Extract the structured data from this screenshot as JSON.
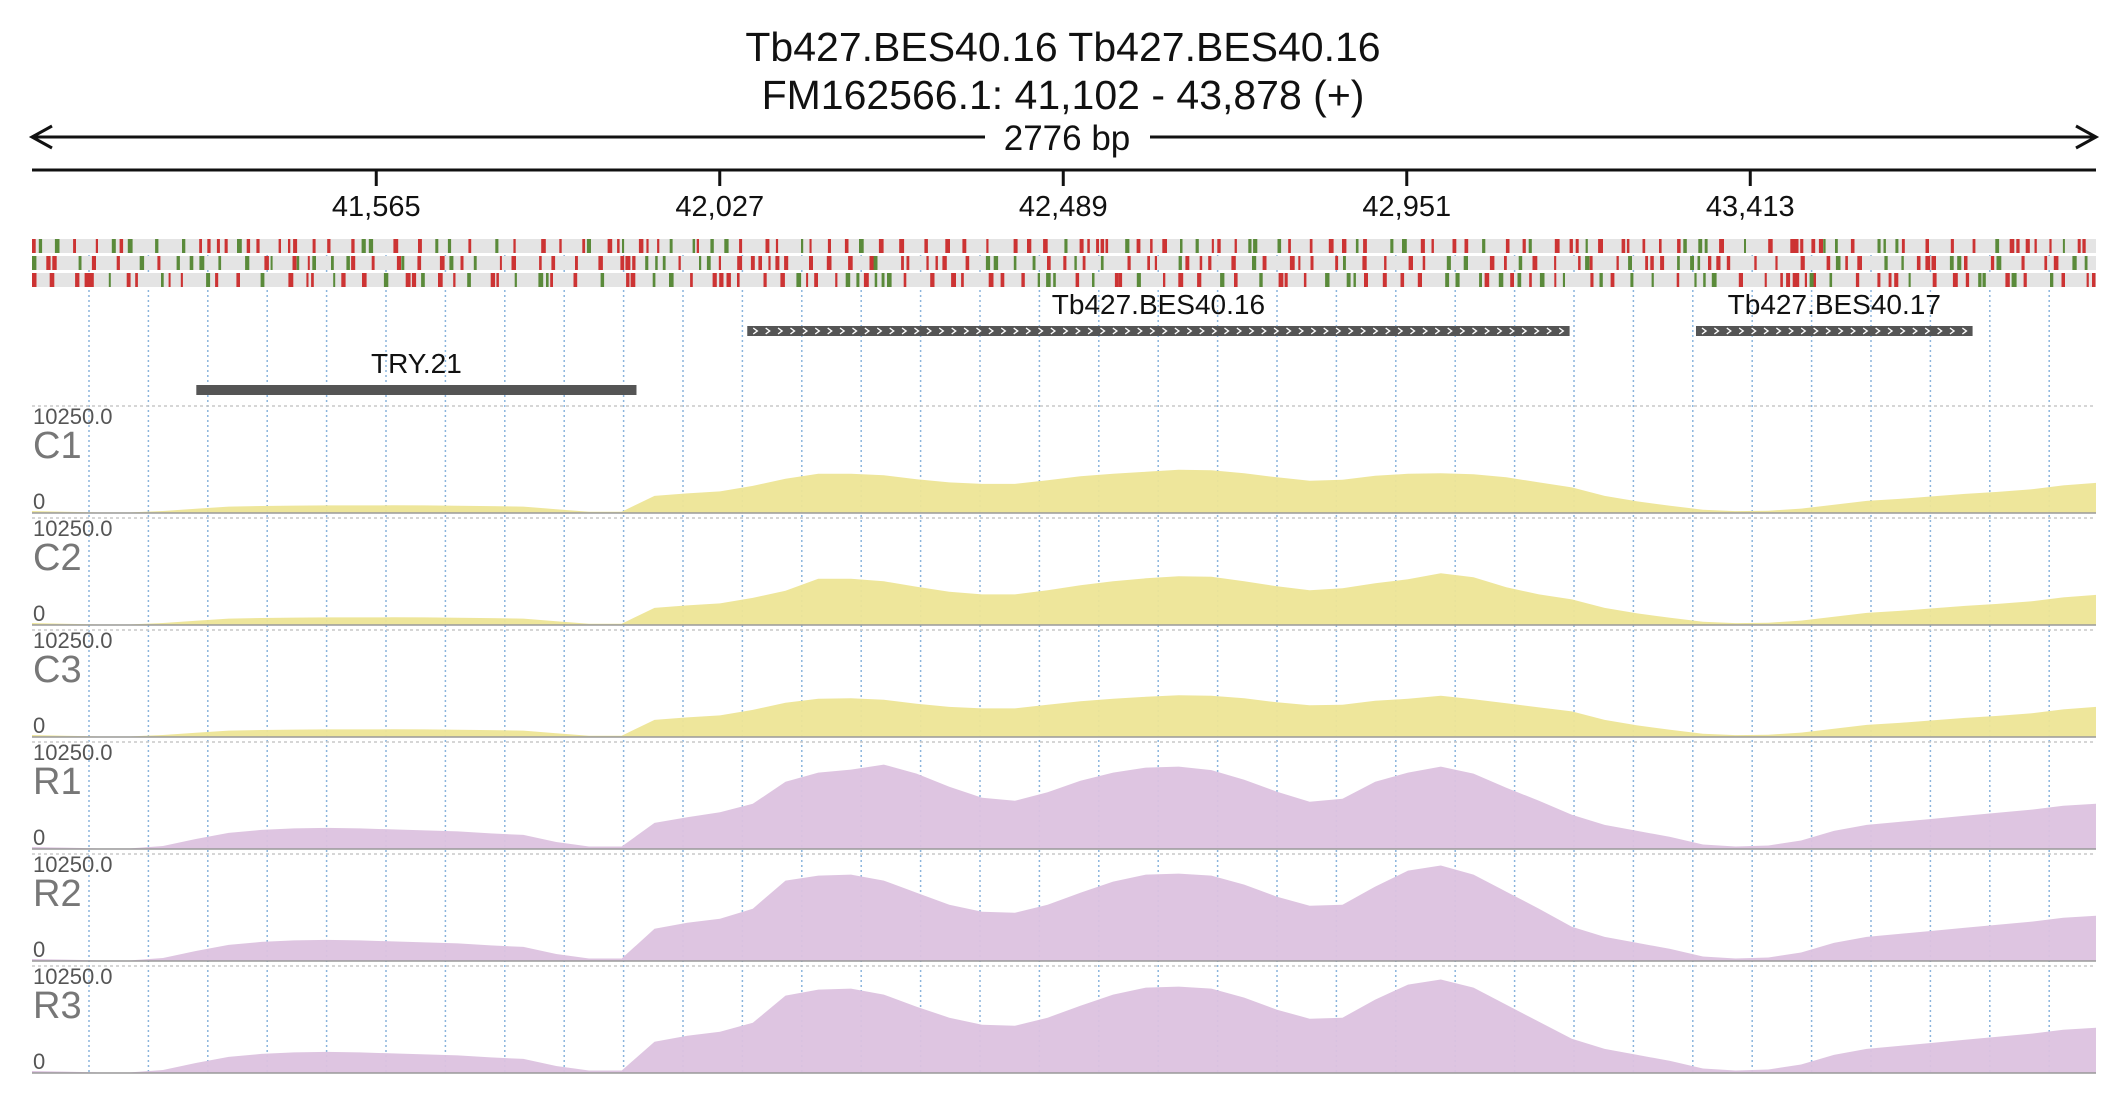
{
  "header": {
    "title_line1": "Tb427.BES40.16  Tb427.BES40.16",
    "title_line2": "FM162566.1: 41,102 - 43,878 (+)",
    "span_label": "2776 bp"
  },
  "chart_data": {
    "type": "area",
    "region": {
      "chrom": "FM162566.1",
      "start": 41102,
      "end": 43878,
      "strand": "+"
    },
    "axis": {
      "ticks": [
        41565,
        42027,
        42489,
        42951,
        43413
      ],
      "tick_labels": [
        "41,565",
        "42,027",
        "42,489",
        "42,951",
        "43,413"
      ]
    },
    "sequence_frames": {
      "rows": 3,
      "stop_color": "#cc3333",
      "start_color": "#5a8a3a",
      "background": "#e4e4e4"
    },
    "genes": [
      {
        "name": "TRY.21",
        "start": 41323,
        "end": 41915,
        "strand": ".",
        "row": 2
      },
      {
        "name": "Tb427.BES40.16",
        "start": 42064,
        "end": 43170,
        "strand": "+",
        "row": 1
      },
      {
        "name": "Tb427.BES40.17",
        "start": 43340,
        "end": 43712,
        "strand": "+",
        "row": 1
      }
    ],
    "tracks": [
      {
        "name": "C1",
        "max": "10250.0",
        "min": "0",
        "color": "#ede596",
        "values": [
          200,
          130,
          60,
          60,
          200,
          430,
          640,
          700,
          740,
          760,
          760,
          770,
          760,
          730,
          690,
          640,
          380,
          130,
          130,
          1700,
          1950,
          2150,
          2700,
          3400,
          3900,
          3900,
          3750,
          3350,
          3050,
          2900,
          2900,
          3250,
          3650,
          3900,
          4100,
          4300,
          4250,
          3950,
          3550,
          3200,
          3300,
          3700,
          3900,
          3950,
          3850,
          3550,
          3050,
          2550,
          1700,
          1150,
          730,
          330,
          190,
          230,
          440,
          820,
          1200,
          1400,
          1650,
          1900,
          2100,
          2350,
          2750,
          3000
        ]
      },
      {
        "name": "C2",
        "max": "10250.0",
        "min": "0",
        "color": "#ede596",
        "values": [
          200,
          130,
          60,
          60,
          200,
          430,
          640,
          700,
          740,
          760,
          760,
          770,
          760,
          730,
          690,
          640,
          380,
          130,
          130,
          1700,
          1950,
          2150,
          2700,
          3400,
          4600,
          4600,
          4350,
          3800,
          3300,
          3050,
          3050,
          3450,
          3950,
          4350,
          4650,
          4850,
          4800,
          4350,
          3850,
          3450,
          3650,
          4150,
          4550,
          5150,
          4750,
          3750,
          3050,
          2550,
          1700,
          1150,
          730,
          330,
          190,
          230,
          440,
          820,
          1200,
          1400,
          1650,
          1900,
          2100,
          2350,
          2750,
          3000
        ]
      },
      {
        "name": "C3",
        "max": "10250.0",
        "min": "0",
        "color": "#ede596",
        "values": [
          200,
          130,
          60,
          60,
          200,
          430,
          640,
          700,
          740,
          760,
          760,
          770,
          760,
          730,
          690,
          640,
          380,
          130,
          130,
          1700,
          1950,
          2150,
          2700,
          3400,
          3800,
          3850,
          3700,
          3300,
          3000,
          2850,
          2850,
          3200,
          3550,
          3800,
          4000,
          4150,
          4100,
          3850,
          3450,
          3150,
          3200,
          3600,
          3800,
          4100,
          3750,
          3350,
          2950,
          2550,
          1700,
          1150,
          730,
          330,
          190,
          230,
          440,
          820,
          1200,
          1400,
          1650,
          1900,
          2100,
          2350,
          2750,
          3000
        ]
      },
      {
        "name": "R1",
        "max": "10250.0",
        "min": "0",
        "color": "#dcc2df",
        "values": [
          200,
          140,
          60,
          60,
          300,
          1000,
          1600,
          1900,
          2050,
          2100,
          2050,
          1950,
          1850,
          1750,
          1550,
          1400,
          700,
          250,
          250,
          2600,
          3150,
          3650,
          4500,
          6700,
          7600,
          7900,
          8400,
          7500,
          6200,
          5100,
          4800,
          5650,
          6800,
          7600,
          8100,
          8200,
          7850,
          6900,
          5700,
          4700,
          5000,
          6700,
          7600,
          8200,
          7500,
          6100,
          4800,
          3400,
          2400,
          1800,
          1200,
          450,
          250,
          350,
          850,
          1800,
          2400,
          2700,
          3000,
          3300,
          3600,
          3900,
          4300,
          4500
        ]
      },
      {
        "name": "R2",
        "max": "10250.0",
        "min": "0",
        "color": "#dcc2df",
        "values": [
          200,
          140,
          60,
          60,
          300,
          1000,
          1600,
          1900,
          2050,
          2100,
          2050,
          1950,
          1850,
          1750,
          1550,
          1400,
          700,
          250,
          250,
          3200,
          3800,
          4200,
          5200,
          8000,
          8500,
          8600,
          8000,
          6800,
          5600,
          4900,
          4800,
          5600,
          6800,
          7900,
          8600,
          8700,
          8500,
          7600,
          6400,
          5500,
          5600,
          7400,
          9000,
          9500,
          8600,
          6900,
          5200,
          3400,
          2400,
          1800,
          1200,
          450,
          250,
          350,
          850,
          1800,
          2400,
          2700,
          3000,
          3300,
          3600,
          3900,
          4300,
          4500
        ]
      },
      {
        "name": "R3",
        "max": "10250.0",
        "min": "0",
        "color": "#dcc2df",
        "values": [
          200,
          140,
          60,
          60,
          300,
          1000,
          1600,
          1900,
          2050,
          2100,
          2050,
          1950,
          1850,
          1750,
          1550,
          1400,
          700,
          250,
          250,
          3100,
          3700,
          4100,
          5000,
          7700,
          8300,
          8400,
          7800,
          6600,
          5500,
          4800,
          4700,
          5500,
          6700,
          7800,
          8500,
          8600,
          8400,
          7500,
          6300,
          5400,
          5500,
          7300,
          8800,
          9300,
          8500,
          6800,
          5100,
          3400,
          2400,
          1800,
          1200,
          450,
          250,
          350,
          850,
          1800,
          2400,
          2700,
          3000,
          3300,
          3600,
          3900,
          4300,
          4500
        ]
      }
    ]
  }
}
